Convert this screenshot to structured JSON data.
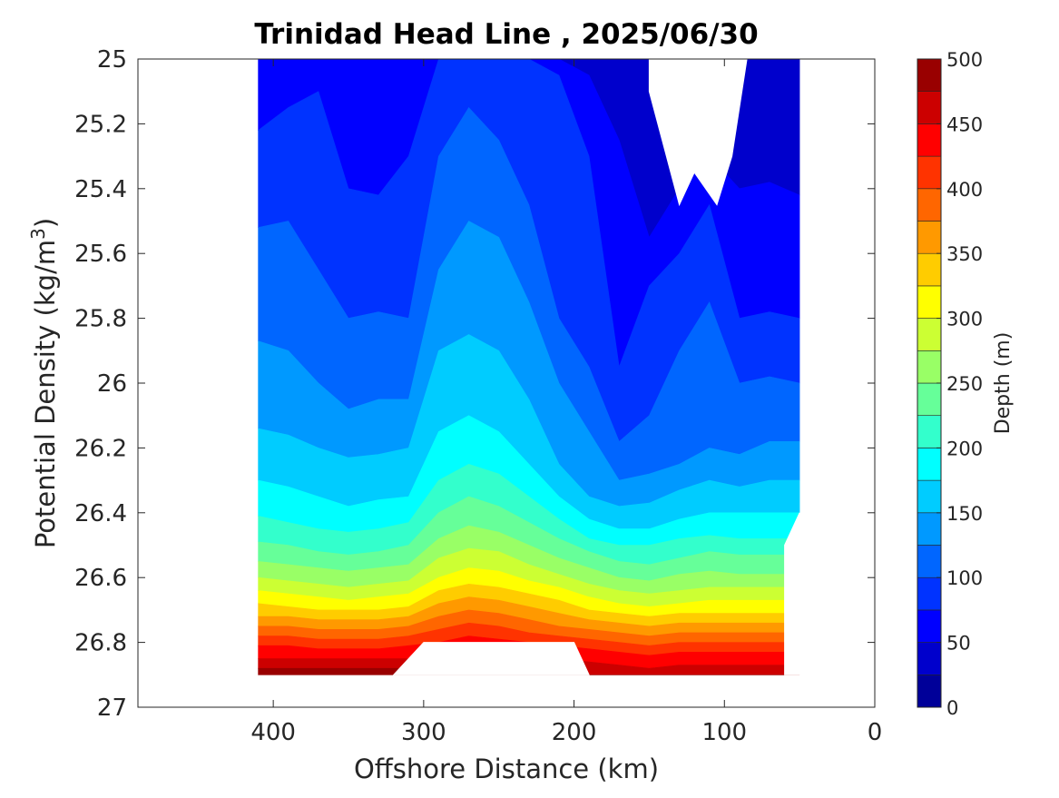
{
  "chart_data": {
    "type": "heatmap",
    "subtype": "filled-contour",
    "title": "Trinidad Head Line , 2025/06/30",
    "xlabel": "Offshore Distance (km)",
    "ylabel": "Potential Density (kg/m",
    "ylabel_superscript": "3",
    "ylabel_suffix": ")",
    "xlim": [
      490,
      0
    ],
    "x_reversed": true,
    "ylim": [
      25,
      27
    ],
    "y_reversed": true,
    "x_ticks": [
      400,
      300,
      200,
      100,
      0
    ],
    "y_ticks": [
      "25",
      "25.2",
      "25.4",
      "25.6",
      "25.8",
      "26",
      "26.2",
      "26.4",
      "26.6",
      "26.8",
      "27"
    ],
    "colorbar": {
      "label": "Depth (m)",
      "min": 0,
      "max": 500,
      "step": 25,
      "ticks": [
        0,
        50,
        100,
        150,
        200,
        250,
        300,
        350,
        400,
        450,
        500
      ],
      "colormap": "jet"
    },
    "data_extent": {
      "x_min": 50,
      "x_max": 410,
      "sigma_min": 25,
      "sigma_max": 26.9
    },
    "contour_lines": {
      "x": [
        410,
        390,
        370,
        350,
        330,
        310,
        290,
        270,
        250,
        230,
        210,
        190,
        170,
        150,
        130,
        110,
        90,
        70,
        50
      ],
      "levels": [
        {
          "depth": 25,
          "sigma": [
            25.0,
            25.0,
            25.0,
            25.05,
            25.0,
            25.0,
            25.0,
            25.0,
            25.0,
            25.0,
            25.0,
            25.0,
            25.0,
            25.0,
            25.0,
            25.0,
            25.0,
            25.0,
            25.0
          ]
        },
        {
          "depth": 50,
          "sigma": [
            25.0,
            25.0,
            25.0,
            25.0,
            25.0,
            25.0,
            25.0,
            25.0,
            25.0,
            25.0,
            25.0,
            25.05,
            25.25,
            25.55,
            25.4,
            25.3,
            25.4,
            25.38,
            25.42
          ]
        },
        {
          "depth": 75,
          "sigma": [
            25.22,
            25.15,
            25.1,
            25.4,
            25.42,
            25.3,
            25.0,
            25.0,
            25.0,
            25.0,
            25.05,
            25.3,
            25.95,
            25.7,
            25.6,
            25.45,
            25.8,
            25.78,
            25.8
          ]
        },
        {
          "depth": 100,
          "sigma": [
            25.52,
            25.5,
            25.65,
            25.8,
            25.78,
            25.8,
            25.3,
            25.15,
            25.25,
            25.45,
            25.8,
            25.95,
            26.18,
            26.1,
            25.9,
            25.75,
            26.0,
            25.98,
            26.0
          ]
        },
        {
          "depth": 125,
          "sigma": [
            25.87,
            25.9,
            26.0,
            26.08,
            26.05,
            26.05,
            25.65,
            25.5,
            25.55,
            25.75,
            26.0,
            26.15,
            26.3,
            26.28,
            26.25,
            26.2,
            26.22,
            26.18,
            26.18
          ]
        },
        {
          "depth": 150,
          "sigma": [
            26.14,
            26.16,
            26.2,
            26.23,
            26.22,
            26.2,
            25.9,
            25.85,
            25.9,
            26.05,
            26.25,
            26.35,
            26.38,
            26.37,
            26.33,
            26.3,
            26.32,
            26.3,
            26.3
          ]
        },
        {
          "depth": 175,
          "sigma": [
            26.3,
            26.32,
            26.35,
            26.38,
            26.36,
            26.35,
            26.15,
            26.1,
            26.15,
            26.25,
            26.35,
            26.42,
            26.45,
            26.45,
            26.42,
            26.4,
            26.4,
            26.4,
            26.4
          ]
        },
        {
          "depth": 200,
          "sigma": [
            26.41,
            26.43,
            26.45,
            26.46,
            26.45,
            26.43,
            26.3,
            26.25,
            26.28,
            26.35,
            26.42,
            26.48,
            26.5,
            26.5,
            26.48,
            26.47,
            26.48,
            26.48,
            26.48
          ]
        },
        {
          "depth": 225,
          "sigma": [
            26.49,
            26.5,
            26.52,
            26.53,
            26.52,
            26.5,
            26.4,
            26.35,
            26.38,
            26.43,
            26.48,
            26.52,
            26.55,
            26.56,
            26.54,
            26.52,
            26.53,
            26.53,
            26.53
          ]
        },
        {
          "depth": 250,
          "sigma": [
            26.55,
            26.56,
            26.57,
            26.58,
            26.57,
            26.56,
            26.48,
            26.44,
            26.46,
            26.5,
            26.54,
            26.57,
            26.6,
            26.61,
            26.59,
            26.58,
            26.59,
            26.59,
            26.59
          ]
        },
        {
          "depth": 275,
          "sigma": [
            26.6,
            26.61,
            26.62,
            26.63,
            26.62,
            26.61,
            26.54,
            26.51,
            26.52,
            26.56,
            26.59,
            26.62,
            26.64,
            26.65,
            26.64,
            26.63,
            26.63,
            26.63,
            26.63
          ]
        },
        {
          "depth": 300,
          "sigma": [
            26.64,
            26.65,
            26.66,
            26.67,
            26.66,
            26.65,
            26.6,
            26.57,
            26.58,
            26.61,
            26.63,
            26.66,
            26.68,
            26.69,
            26.68,
            26.67,
            26.67,
            26.67,
            26.67
          ]
        },
        {
          "depth": 325,
          "sigma": [
            26.68,
            26.69,
            26.7,
            26.7,
            26.7,
            26.69,
            26.64,
            26.62,
            26.63,
            26.65,
            26.67,
            26.7,
            26.71,
            26.72,
            26.71,
            26.71,
            26.71,
            26.71,
            26.71
          ]
        },
        {
          "depth": 350,
          "sigma": [
            26.72,
            26.72,
            26.73,
            26.73,
            26.73,
            26.72,
            26.68,
            26.66,
            26.67,
            26.69,
            26.71,
            26.73,
            26.74,
            26.75,
            26.74,
            26.74,
            26.74,
            26.74,
            26.74
          ]
        },
        {
          "depth": 375,
          "sigma": [
            26.75,
            26.75,
            26.76,
            26.76,
            26.76,
            26.75,
            26.72,
            26.7,
            26.71,
            26.73,
            26.75,
            26.76,
            26.77,
            26.78,
            26.77,
            26.77,
            26.77,
            26.77,
            26.77
          ]
        },
        {
          "depth": 400,
          "sigma": [
            26.78,
            26.78,
            26.79,
            26.79,
            26.79,
            26.78,
            26.76,
            26.74,
            26.75,
            26.77,
            26.78,
            26.79,
            26.8,
            26.81,
            26.8,
            26.8,
            26.8,
            26.8,
            26.8
          ]
        },
        {
          "depth": 425,
          "sigma": [
            26.81,
            26.81,
            26.82,
            26.82,
            26.82,
            26.81,
            26.8,
            26.78,
            26.79,
            26.8,
            26.81,
            26.82,
            26.83,
            26.84,
            26.83,
            26.83,
            26.83,
            26.83,
            26.83
          ]
        },
        {
          "depth": 450,
          "sigma": [
            26.85,
            26.85,
            26.85,
            26.85,
            26.85,
            26.85,
            26.85,
            26.85,
            26.85,
            26.85,
            26.85,
            26.86,
            26.87,
            26.88,
            26.87,
            26.87,
            26.87,
            26.87,
            26.87
          ]
        },
        {
          "depth": 475,
          "sigma": [
            26.88,
            26.88,
            26.88,
            26.88,
            26.88,
            26.88,
            26.88,
            26.88,
            26.88,
            26.88,
            26.88,
            26.9,
            26.9,
            26.9,
            26.9,
            26.9,
            26.9,
            26.9,
            26.9
          ]
        }
      ]
    },
    "blank_regions": [
      {
        "name": "top-notch",
        "polygon": [
          [
            175,
            25.0
          ],
          [
            150,
            25.0
          ],
          [
            150,
            25.1
          ],
          [
            130,
            25.45
          ],
          [
            120,
            25.35
          ],
          [
            105,
            25.45
          ],
          [
            95,
            25.3
          ],
          [
            85,
            25.0
          ],
          [
            75,
            25.0
          ]
        ]
      },
      {
        "name": "bottom-notch",
        "polygon": [
          [
            320,
            26.9
          ],
          [
            300,
            26.8
          ],
          [
            200,
            26.8
          ],
          [
            190,
            26.9
          ]
        ]
      },
      {
        "name": "lower-right-notch",
        "polygon": [
          [
            60,
            26.9
          ],
          [
            60,
            26.5
          ],
          [
            50,
            26.4
          ],
          [
            50,
            26.9
          ]
        ]
      }
    ]
  }
}
